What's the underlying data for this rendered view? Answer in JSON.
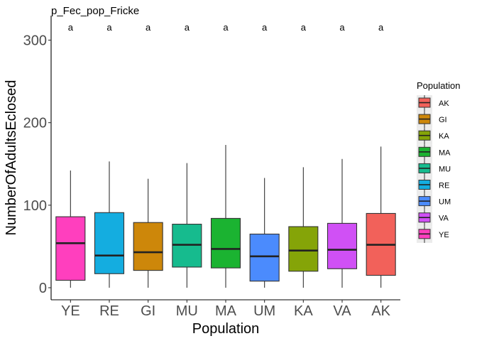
{
  "chart_data": {
    "type": "box",
    "title": "p_Fec_pop_Fricke",
    "xlabel": "Population",
    "ylabel": "NumberOfAdultsEclosed",
    "ylim": [
      -15,
      320
    ],
    "yticks": [
      0,
      100,
      200,
      300
    ],
    "grid": false,
    "categories": [
      "YE",
      "RE",
      "GI",
      "MU",
      "MA",
      "UM",
      "KA",
      "VA",
      "AK"
    ],
    "significance_labels": [
      "a",
      "a",
      "a",
      "a",
      "a",
      "a",
      "a",
      "a",
      "a"
    ],
    "boxes": [
      {
        "category": "YE",
        "min": 0,
        "q1": 9,
        "median": 54,
        "q3": 86,
        "max": 142,
        "color": "#FF3FBE"
      },
      {
        "category": "RE",
        "min": 0,
        "q1": 17,
        "median": 39,
        "q3": 91,
        "max": 153,
        "color": "#14ADE0"
      },
      {
        "category": "GI",
        "min": 0,
        "q1": 21,
        "median": 43,
        "q3": 79,
        "max": 132,
        "color": "#CD870A"
      },
      {
        "category": "MU",
        "min": 0,
        "q1": 25,
        "median": 52,
        "q3": 77,
        "max": 151,
        "color": "#16BB8E"
      },
      {
        "category": "MA",
        "min": 0,
        "q1": 24,
        "median": 47,
        "q3": 84,
        "max": 173,
        "color": "#1BB331"
      },
      {
        "category": "UM",
        "min": 0,
        "q1": 8,
        "median": 38,
        "q3": 65,
        "max": 133,
        "color": "#4B8BFD"
      },
      {
        "category": "KA",
        "min": 0,
        "q1": 20,
        "median": 45,
        "q3": 74,
        "max": 146,
        "color": "#85A408"
      },
      {
        "category": "VA",
        "min": 0,
        "q1": 23,
        "median": 46,
        "q3": 78,
        "max": 156,
        "color": "#D050F5"
      },
      {
        "category": "AK",
        "min": 0,
        "q1": 15,
        "median": 52,
        "q3": 90,
        "max": 171,
        "color": "#F2615A"
      }
    ],
    "legend": {
      "title": "Population",
      "placement": "right",
      "items": [
        {
          "label": "AK",
          "color": "#F2615A"
        },
        {
          "label": "GI",
          "color": "#CD870A"
        },
        {
          "label": "KA",
          "color": "#85A408"
        },
        {
          "label": "MA",
          "color": "#1BB331"
        },
        {
          "label": "MU",
          "color": "#16BB8E"
        },
        {
          "label": "RE",
          "color": "#14ADE0"
        },
        {
          "label": "UM",
          "color": "#4B8BFD"
        },
        {
          "label": "VA",
          "color": "#D050F5"
        },
        {
          "label": "YE",
          "color": "#FF3FBE"
        }
      ]
    }
  }
}
